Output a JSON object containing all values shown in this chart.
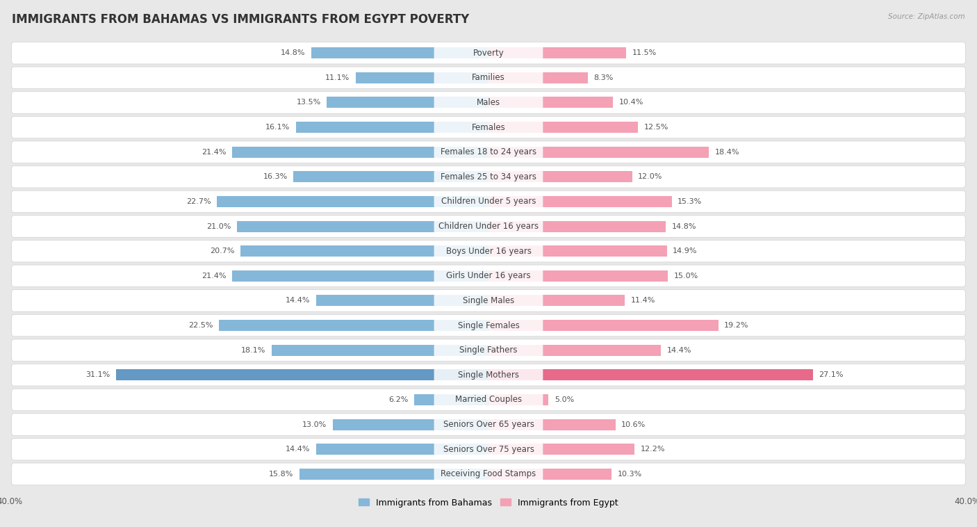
{
  "title": "IMMIGRANTS FROM BAHAMAS VS IMMIGRANTS FROM EGYPT POVERTY",
  "source": "Source: ZipAtlas.com",
  "categories": [
    "Poverty",
    "Families",
    "Males",
    "Females",
    "Females 18 to 24 years",
    "Females 25 to 34 years",
    "Children Under 5 years",
    "Children Under 16 years",
    "Boys Under 16 years",
    "Girls Under 16 years",
    "Single Males",
    "Single Females",
    "Single Fathers",
    "Single Mothers",
    "Married Couples",
    "Seniors Over 65 years",
    "Seniors Over 75 years",
    "Receiving Food Stamps"
  ],
  "bahamas_values": [
    14.8,
    11.1,
    13.5,
    16.1,
    21.4,
    16.3,
    22.7,
    21.0,
    20.7,
    21.4,
    14.4,
    22.5,
    18.1,
    31.1,
    6.2,
    13.0,
    14.4,
    15.8
  ],
  "egypt_values": [
    11.5,
    8.3,
    10.4,
    12.5,
    18.4,
    12.0,
    15.3,
    14.8,
    14.9,
    15.0,
    11.4,
    19.2,
    14.4,
    27.1,
    5.0,
    10.6,
    12.2,
    10.3
  ],
  "bahamas_color": "#85b7d9",
  "egypt_color": "#f4a0b5",
  "bahamas_color_strong": "#6399c4",
  "egypt_color_strong": "#e8698a",
  "background_color": "#e8e8e8",
  "row_bg_color": "#ffffff",
  "row_border_color": "#d0d0d0",
  "xlim": 40.0,
  "legend_bahamas": "Immigrants from Bahamas",
  "legend_egypt": "Immigrants from Egypt",
  "title_fontsize": 12,
  "label_fontsize": 8.5,
  "value_fontsize": 8,
  "axis_tick_fontsize": 8.5,
  "source_fontsize": 7.5
}
